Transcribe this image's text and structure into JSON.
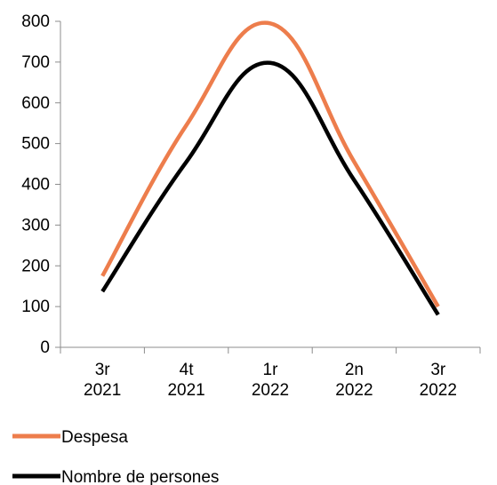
{
  "chart_data": {
    "type": "line",
    "categories": [
      [
        "3r",
        "2021"
      ],
      [
        "4t",
        "2021"
      ],
      [
        "1r",
        "2022"
      ],
      [
        "2n",
        "2022"
      ],
      [
        "3r",
        "2022"
      ]
    ],
    "ylim": [
      0,
      800
    ],
    "yticks": [
      0,
      100,
      200,
      300,
      400,
      500,
      600,
      700,
      800
    ],
    "grid": false,
    "legend_placement": "bottom-left",
    "series": [
      {
        "name": "Despesa",
        "values": [
          175,
          545,
          795,
          455,
          100
        ],
        "color": "#ED7D4C"
      },
      {
        "name": "Nombre de persones",
        "values": [
          137,
          455,
          698,
          410,
          80
        ],
        "color": "#000000"
      }
    ]
  }
}
